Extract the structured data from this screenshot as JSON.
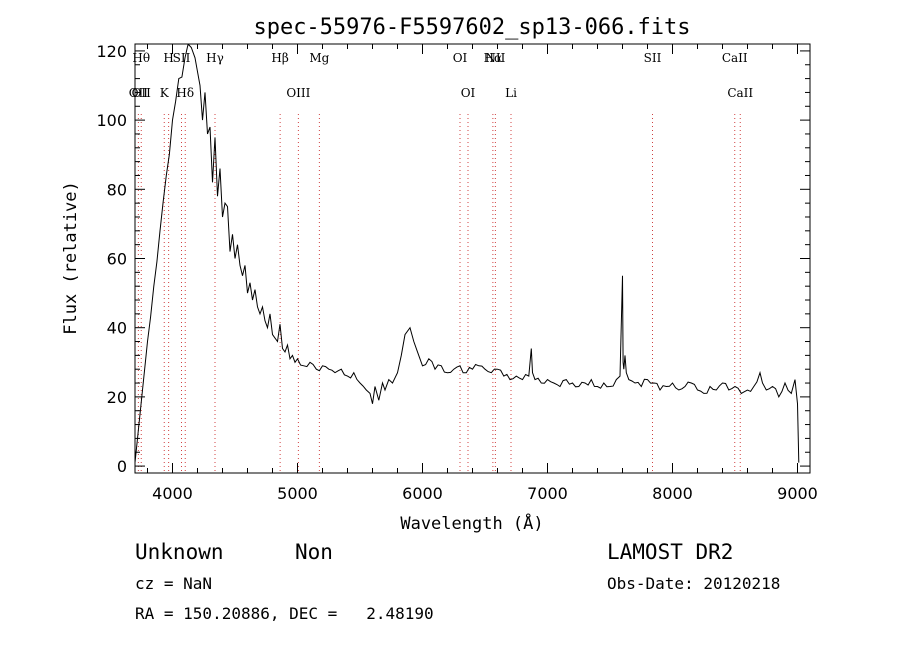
{
  "chart_data": {
    "type": "line",
    "title": "spec-55976-F5597602_sp13-066.fits",
    "xlabel": "Wavelength (Å)",
    "ylabel": "Flux (relative)",
    "xlim": [
      3700,
      9100
    ],
    "ylim": [
      -2,
      122
    ],
    "xticks": [
      4000,
      5000,
      6000,
      7000,
      8000,
      9000
    ],
    "yticks": [
      0,
      20,
      40,
      60,
      80,
      100,
      120
    ],
    "grid": false,
    "series": [
      {
        "x": [
          3700,
          3720,
          3740,
          3760,
          3780,
          3800,
          3850,
          3900,
          3950,
          4000,
          4050,
          4100,
          4150,
          4180,
          4200,
          4220,
          4240,
          4260,
          4280,
          4300,
          4320,
          4340,
          4360,
          4380,
          4400,
          4420,
          4440,
          4460,
          4480,
          4500,
          4520,
          4540,
          4560,
          4580,
          4600,
          4620,
          4640,
          4660,
          4680,
          4700,
          4720,
          4740,
          4760,
          4780,
          4800,
          4820,
          4840,
          4860,
          4880,
          4900,
          4920,
          4940,
          4960,
          4980,
          5000,
          5050,
          5100,
          5150,
          5200,
          5250,
          5300,
          5350,
          5400,
          5450,
          5500,
          5550,
          5580,
          5600,
          5620,
          5650,
          5680,
          5700,
          5730,
          5760,
          5800,
          5830,
          5860,
          5900,
          5930,
          5960,
          6000,
          6050,
          6100,
          6150,
          6200,
          6250,
          6300,
          6350,
          6400,
          6450,
          6500,
          6550,
          6600,
          6650,
          6700,
          6750,
          6800,
          6850,
          6870,
          6880,
          6900,
          6950,
          7000,
          7050,
          7100,
          7150,
          7200,
          7250,
          7300,
          7350,
          7400,
          7450,
          7500,
          7550,
          7580,
          7600,
          7605,
          7610,
          7620,
          7630,
          7650,
          7700,
          7750,
          7800,
          7850,
          7900,
          7950,
          8000,
          8050,
          8100,
          8150,
          8200,
          8250,
          8300,
          8350,
          8400,
          8450,
          8500,
          8550,
          8600,
          8650,
          8700,
          8720,
          8750,
          8800,
          8850,
          8900,
          8950,
          8980,
          9000,
          9010
        ],
        "y": [
          1,
          8,
          15,
          22,
          29,
          36,
          52,
          68,
          84,
          100,
          112,
          118,
          121,
          118,
          114,
          110,
          100,
          108,
          96,
          98,
          82,
          95,
          78,
          86,
          72,
          76,
          75,
          62,
          67,
          60,
          64,
          58,
          55,
          58,
          50,
          53,
          48,
          51,
          46,
          44,
          46,
          42,
          40,
          44,
          38,
          37,
          36,
          41,
          34,
          33,
          35,
          31,
          32,
          30,
          31,
          29,
          30,
          28,
          29,
          28,
          27,
          28,
          26,
          27,
          24,
          22,
          21,
          18,
          23,
          19,
          24,
          22,
          25,
          24,
          27,
          32,
          38,
          40,
          36,
          33,
          29,
          31,
          28,
          29,
          27,
          28,
          29,
          27,
          28,
          29,
          28,
          27,
          28,
          26,
          25,
          26,
          25,
          26,
          34,
          27,
          25,
          24,
          25,
          24,
          23,
          25,
          24,
          23,
          24,
          25,
          23,
          24,
          23,
          25,
          26,
          55,
          30,
          28,
          32,
          27,
          25,
          24,
          23,
          25,
          24,
          22,
          23,
          24,
          22,
          23,
          24,
          22,
          21,
          23,
          22,
          24,
          22,
          23,
          21,
          22,
          23,
          27,
          24,
          22,
          23,
          20,
          24,
          21,
          25,
          18,
          1
        ]
      }
    ],
    "line_markers": [
      {
        "x": 3750,
        "top": "Hθ",
        "bottom": "OII"
      },
      {
        "x": 3727,
        "bottom": "OII"
      },
      {
        "x": 3934,
        "bottom": "K"
      },
      {
        "x": 3969,
        "top": "H"
      },
      {
        "x": 4072,
        "top": "SII"
      },
      {
        "x": 4102,
        "bottom": "Hδ"
      },
      {
        "x": 4340,
        "top": "Hγ"
      },
      {
        "x": 4861,
        "top": "Hβ"
      },
      {
        "x": 5007,
        "bottom": "OIII"
      },
      {
        "x": 5175,
        "top": "Mg"
      },
      {
        "x": 6300,
        "top": "OI"
      },
      {
        "x": 6364,
        "bottom": "OI"
      },
      {
        "x": 6563,
        "top": "Hα"
      },
      {
        "x": 6583,
        "top": "NII"
      },
      {
        "x": 6708,
        "bottom": "Li"
      },
      {
        "x": 7840,
        "top": "SII"
      },
      {
        "x": 8498,
        "top": "CaII"
      },
      {
        "x": 8542,
        "bottom": "CaII"
      }
    ]
  },
  "info": {
    "class_label": "Unknown",
    "subclass_label": "Non",
    "survey_label": "LAMOST DR2",
    "cz_text": "cz = NaN",
    "obs_date_text": "Obs-Date: 20120218",
    "coords_text": "RA = 150.20886, DEC =   2.48190"
  }
}
